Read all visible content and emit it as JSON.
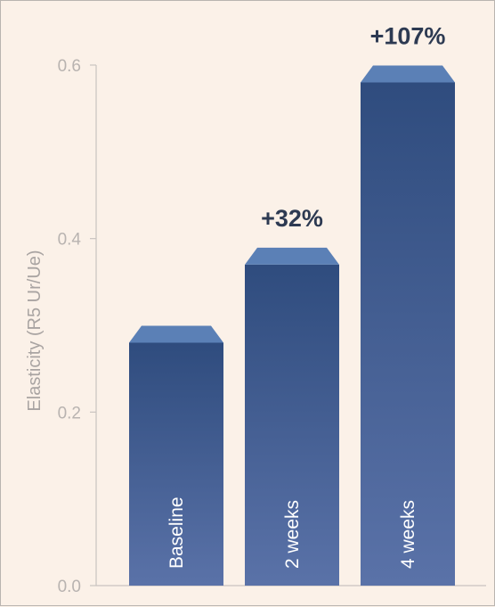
{
  "chart_data": {
    "type": "bar",
    "categories": [
      "Baseline",
      "2 weeks",
      "4 weeks"
    ],
    "values": [
      0.28,
      0.37,
      0.58
    ],
    "annotations": [
      "",
      "+32%",
      "+107%"
    ],
    "ylabel": "Elasticity (R5 Ur/Ue)",
    "xlabel": "",
    "ylim": [
      0,
      0.6
    ],
    "yticks": [
      "0.0",
      "0.2",
      "0.4",
      "0.6"
    ],
    "grid": false,
    "colors": {
      "bar_top": "#2f4c7e",
      "bar_bottom": "#5a72a8",
      "bar_cap": "#5b80b6",
      "axis": "#c9c4c0",
      "background": "#fbf1e8"
    }
  }
}
